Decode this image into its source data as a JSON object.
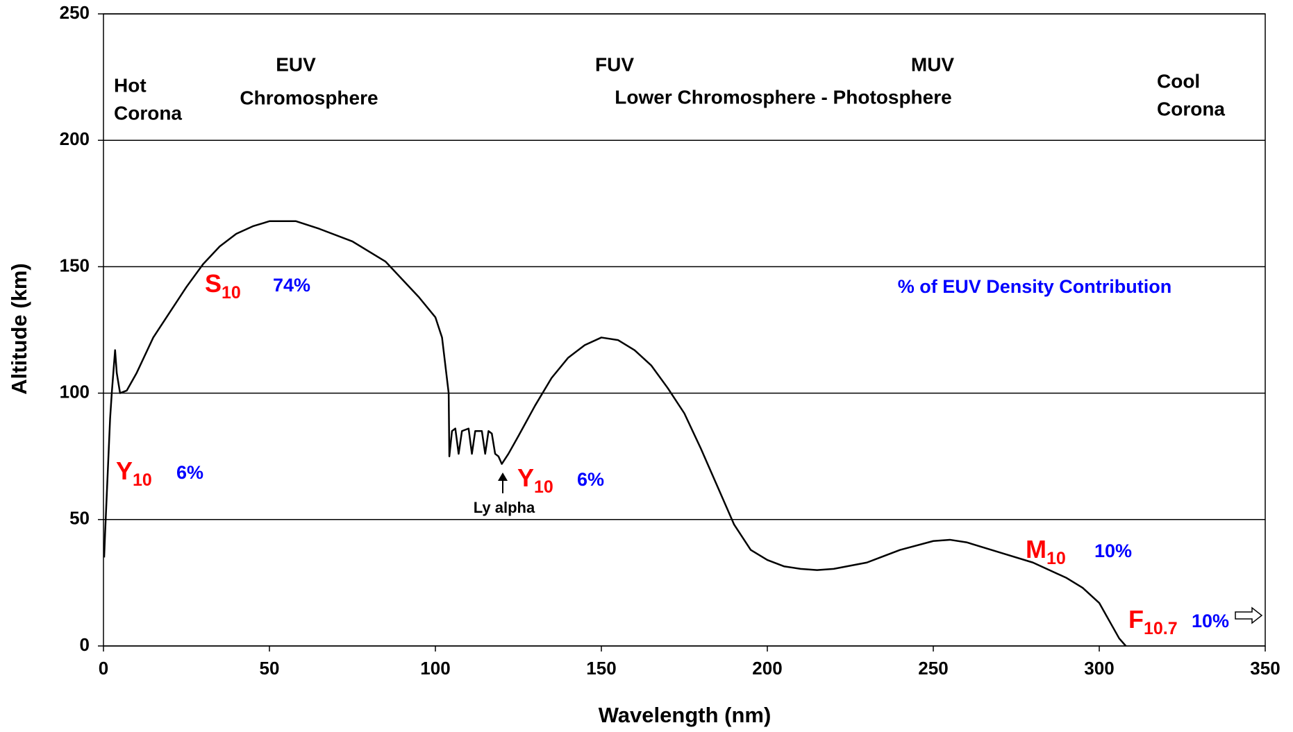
{
  "chart_data": {
    "type": "line",
    "x_label": "Wavelength (nm)",
    "y_label": "Altitude (km)",
    "xlim": [
      0,
      350
    ],
    "xticks": [
      0,
      50,
      100,
      150,
      200,
      250,
      300,
      350
    ],
    "ylim": [
      0,
      250
    ],
    "yticks": [
      0,
      50,
      100,
      150,
      200,
      250
    ],
    "grid": true,
    "color": "#000000",
    "x": [
      0.2,
      0.5,
      1,
      2,
      2.5,
      3.5,
      4,
      5,
      7,
      10,
      15,
      20,
      25,
      30,
      35,
      40,
      45,
      50,
      58,
      65,
      75,
      85,
      95,
      100,
      102,
      104,
      104.2,
      105,
      106,
      107,
      108,
      110,
      111,
      112,
      114,
      115,
      116,
      117,
      118,
      119,
      120,
      122,
      125,
      130,
      135,
      140,
      145,
      150,
      155,
      160,
      165,
      170,
      175,
      180,
      185,
      190,
      195,
      200,
      205,
      210,
      215,
      220,
      230,
      240,
      250,
      255,
      260,
      270,
      280,
      290,
      295,
      300,
      303,
      306,
      308
    ],
    "values": [
      35,
      45,
      60,
      90,
      100,
      117,
      108,
      100,
      101,
      108,
      122,
      132,
      142,
      151,
      158,
      163,
      166,
      168,
      168,
      165,
      160,
      152,
      138,
      130,
      122,
      100,
      75,
      85,
      86,
      76,
      85,
      86,
      76,
      85,
      85,
      76,
      85,
      84,
      76,
      75,
      72,
      76,
      83,
      95,
      106,
      114,
      119,
      122,
      121,
      117,
      111,
      102,
      92,
      78,
      63,
      48,
      38,
      34,
      31.5,
      30.5,
      30,
      30.5,
      33,
      38,
      41.5,
      42,
      41,
      37,
      33,
      27,
      23,
      17,
      10,
      3,
      0
    ],
    "regions": [
      {
        "title": "EUV",
        "subtitle": "Chromosphere"
      },
      {
        "title": "FUV",
        "subtitle": "Lower Chromosphere - Photosphere"
      },
      {
        "title": "MUV"
      }
    ],
    "edge_labels": [
      [
        "Hot",
        "Corona"
      ],
      [
        "Cool",
        "Corona"
      ]
    ],
    "legend_note": "% of EUV Density Contribution",
    "proxies": [
      {
        "symbol": "S",
        "subscript": "10",
        "share": "74%"
      },
      {
        "symbol": "Y",
        "subscript": "10",
        "share": "6%"
      },
      {
        "symbol": "Y",
        "subscript": "10",
        "share": "6%"
      },
      {
        "symbol": "M",
        "subscript": "10",
        "share": "10%"
      },
      {
        "symbol": "F",
        "subscript": "10.7",
        "share": "10%"
      }
    ],
    "arrow_label": "Ly alpha"
  }
}
